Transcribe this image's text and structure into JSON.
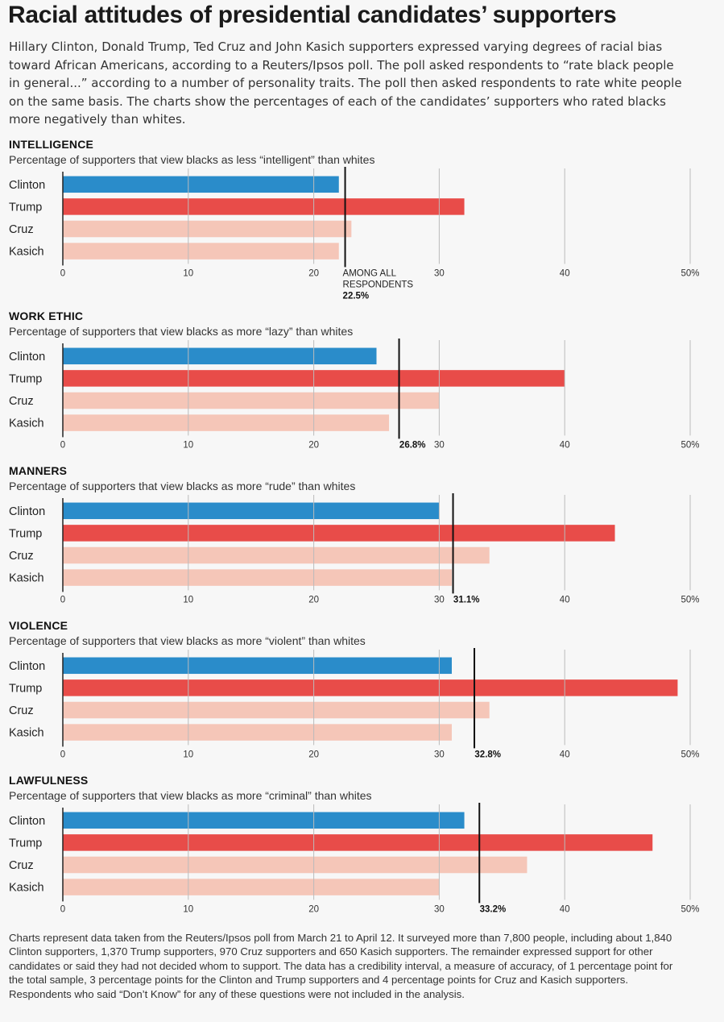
{
  "title": "Racial attitudes of presidential candidates’ supporters",
  "intro": "Hillary Clinton, Donald Trump, Ted Cruz and John Kasich supporters expressed varying degrees of racial bias toward African Americans, according to a Reuters/Ipsos poll. The poll asked respondents to “rate black people in general...” according to a number of personality traits. The poll then asked respondents to rate white people on the same basis. The charts show the percentages of each of the candidates’ supporters who rated blacks more negatively than whites.",
  "footnote": "Charts represent data taken from the Reuters/Ipsos poll from March 21 to April 12. It surveyed more than 7,800 people, including about 1,840 Clinton supporters, 1,370 Trump supporters, 970 Cruz supporters and 650 Kasich supporters. The remainder expressed support for other candidates or said they had not decided whom to support. The data has a credibility interval, a measure of accuracy, of 1 percentage point for the total sample, 3 percentage points for the Clinton and Trump supporters and 4 percentage points for Cruz and Kasich supporters. Respondents who said “Don’t Know” for any of these questions were not included in the analysis.",
  "colors": {
    "clinton": "#2a8cca",
    "trump": "#e84c49",
    "other": "#f5c6b8",
    "reference_line": "#111111",
    "gridline": "#bbbbbb"
  },
  "chart_data": [
    {
      "type": "bar",
      "title": "INTELLIGENCE",
      "subtitle": "Percentage of supporters that view blacks as less “intelligent” than whites",
      "categories": [
        "Clinton",
        "Trump",
        "Cruz",
        "Kasich"
      ],
      "values": [
        22,
        32,
        23,
        22
      ],
      "reference": {
        "value": 22.5,
        "label_lines": [
          "AMONG ALL",
          "RESPONDENTS"
        ],
        "value_label": "22.5%"
      },
      "xlim": [
        0,
        50
      ],
      "ticks": [
        "0",
        "10",
        "20",
        "30",
        "40",
        "50%"
      ],
      "grid": true
    },
    {
      "type": "bar",
      "title": "WORK ETHIC",
      "subtitle": "Percentage of supporters that view blacks as more “lazy” than whites",
      "categories": [
        "Clinton",
        "Trump",
        "Cruz",
        "Kasich"
      ],
      "values": [
        25,
        40,
        30,
        26
      ],
      "reference": {
        "value": 26.8,
        "label_lines": [],
        "value_label": "26.8%"
      },
      "xlim": [
        0,
        50
      ],
      "ticks": [
        "0",
        "10",
        "20",
        "30",
        "40",
        "50%"
      ],
      "grid": true
    },
    {
      "type": "bar",
      "title": "MANNERS",
      "subtitle": "Percentage of supporters that view blacks as more “rude” than whites",
      "categories": [
        "Clinton",
        "Trump",
        "Cruz",
        "Kasich"
      ],
      "values": [
        30,
        44,
        34,
        31
      ],
      "reference": {
        "value": 31.1,
        "label_lines": [],
        "value_label": "31.1%"
      },
      "xlim": [
        0,
        50
      ],
      "ticks": [
        "0",
        "10",
        "20",
        "30",
        "40",
        "50%"
      ],
      "grid": true
    },
    {
      "type": "bar",
      "title": "VIOLENCE",
      "subtitle": "Percentage of supporters that view blacks as more “violent” than whites",
      "categories": [
        "Clinton",
        "Trump",
        "Cruz",
        "Kasich"
      ],
      "values": [
        31,
        49,
        34,
        31
      ],
      "reference": {
        "value": 32.8,
        "label_lines": [],
        "value_label": "32.8%"
      },
      "xlim": [
        0,
        50
      ],
      "ticks": [
        "0",
        "10",
        "20",
        "30",
        "40",
        "50%"
      ],
      "grid": true
    },
    {
      "type": "bar",
      "title": "LAWFULNESS",
      "subtitle": "Percentage of supporters that view blacks as more “criminal” than whites",
      "categories": [
        "Clinton",
        "Trump",
        "Cruz",
        "Kasich"
      ],
      "values": [
        32,
        47,
        37,
        30
      ],
      "reference": {
        "value": 33.2,
        "label_lines": [],
        "value_label": "33.2%"
      },
      "xlim": [
        0,
        50
      ],
      "ticks": [
        "0",
        "10",
        "20",
        "30",
        "40",
        "50%"
      ],
      "grid": true
    }
  ]
}
